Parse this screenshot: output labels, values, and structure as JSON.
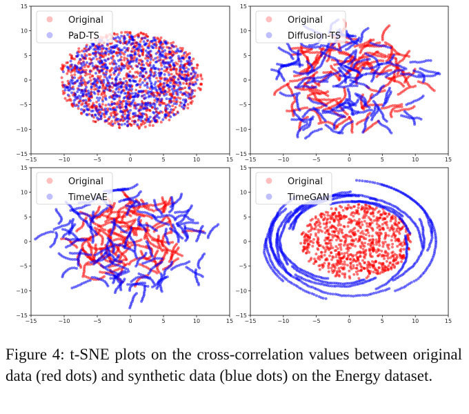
{
  "caption": "Figure 4: t-SNE plots on the cross-correlation values between original data (red dots) and synthetic data (blue dots) on the Energy dataset.",
  "chart_data": [
    {
      "type": "scatter",
      "panel": "top-left",
      "xlim": [
        -15,
        15
      ],
      "ylim": [
        -15,
        15
      ],
      "xticks": [
        "-15",
        "-10",
        "-5",
        "0",
        "5",
        "10",
        "15"
      ],
      "yticks": [
        "-15",
        "-10",
        "-5",
        "0",
        "5",
        "10",
        "15"
      ],
      "legend_position": "top-left",
      "series": [
        {
          "name": "Original",
          "color": "#ff0000",
          "center": [
            0,
            0
          ],
          "radius": 10.3,
          "pattern": "disk"
        },
        {
          "name": "PaD-TS",
          "color": "#0000ff",
          "center": [
            0,
            0
          ],
          "radius": 9.8,
          "pattern": "disk"
        }
      ]
    },
    {
      "type": "scatter",
      "panel": "top-right",
      "xlim": [
        -15,
        15
      ],
      "ylim": [
        -15,
        15
      ],
      "xticks": [
        "-15",
        "-10",
        "-5",
        "0",
        "5",
        "10",
        "15"
      ],
      "yticks": [
        "-15",
        "-10",
        "-5",
        "0",
        "5",
        "10",
        "15"
      ],
      "legend_position": "top-left",
      "series": [
        {
          "name": "Original",
          "color": "#ff0000",
          "center": [
            0,
            0
          ],
          "radius": 10.5,
          "pattern": "streaks"
        },
        {
          "name": "Diffusion-TS",
          "color": "#0000ff",
          "center": [
            0,
            0
          ],
          "radius": 11.5,
          "pattern": "streaks"
        }
      ]
    },
    {
      "type": "scatter",
      "panel": "bottom-left",
      "xlim": [
        -15,
        15
      ],
      "ylim": [
        -15,
        15
      ],
      "xticks": [
        "-15",
        "-10",
        "-5",
        "0",
        "5",
        "10",
        "15"
      ],
      "yticks": [
        "-15",
        "-10",
        "-5",
        "0",
        "5",
        "10",
        "15"
      ],
      "legend_position": "top-left",
      "series": [
        {
          "name": "Original",
          "color": "#ff0000",
          "center": [
            0,
            0
          ],
          "radius": 8.5,
          "pattern": "streaks"
        },
        {
          "name": "TimeVAE",
          "color": "#0000ff",
          "center": [
            0,
            0
          ],
          "radius": 12,
          "pattern": "streaks"
        }
      ]
    },
    {
      "type": "scatter",
      "panel": "bottom-right",
      "xlim": [
        -15,
        15
      ],
      "ylim": [
        -15,
        15
      ],
      "xticks": [
        "-15",
        "-10",
        "-5",
        "0",
        "5",
        "10",
        "15"
      ],
      "yticks": [
        "-15",
        "-10",
        "-5",
        "0",
        "5",
        "10",
        "15"
      ],
      "legend_position": "top-left",
      "series": [
        {
          "name": "Original",
          "color": "#ff0000",
          "center": [
            1,
            0
          ],
          "radius": 8,
          "pattern": "disk"
        },
        {
          "name": "TimeGAN",
          "color": "#0000ff",
          "center": [
            0,
            0
          ],
          "radius": 12.5,
          "pattern": "ring-worms"
        }
      ]
    }
  ]
}
